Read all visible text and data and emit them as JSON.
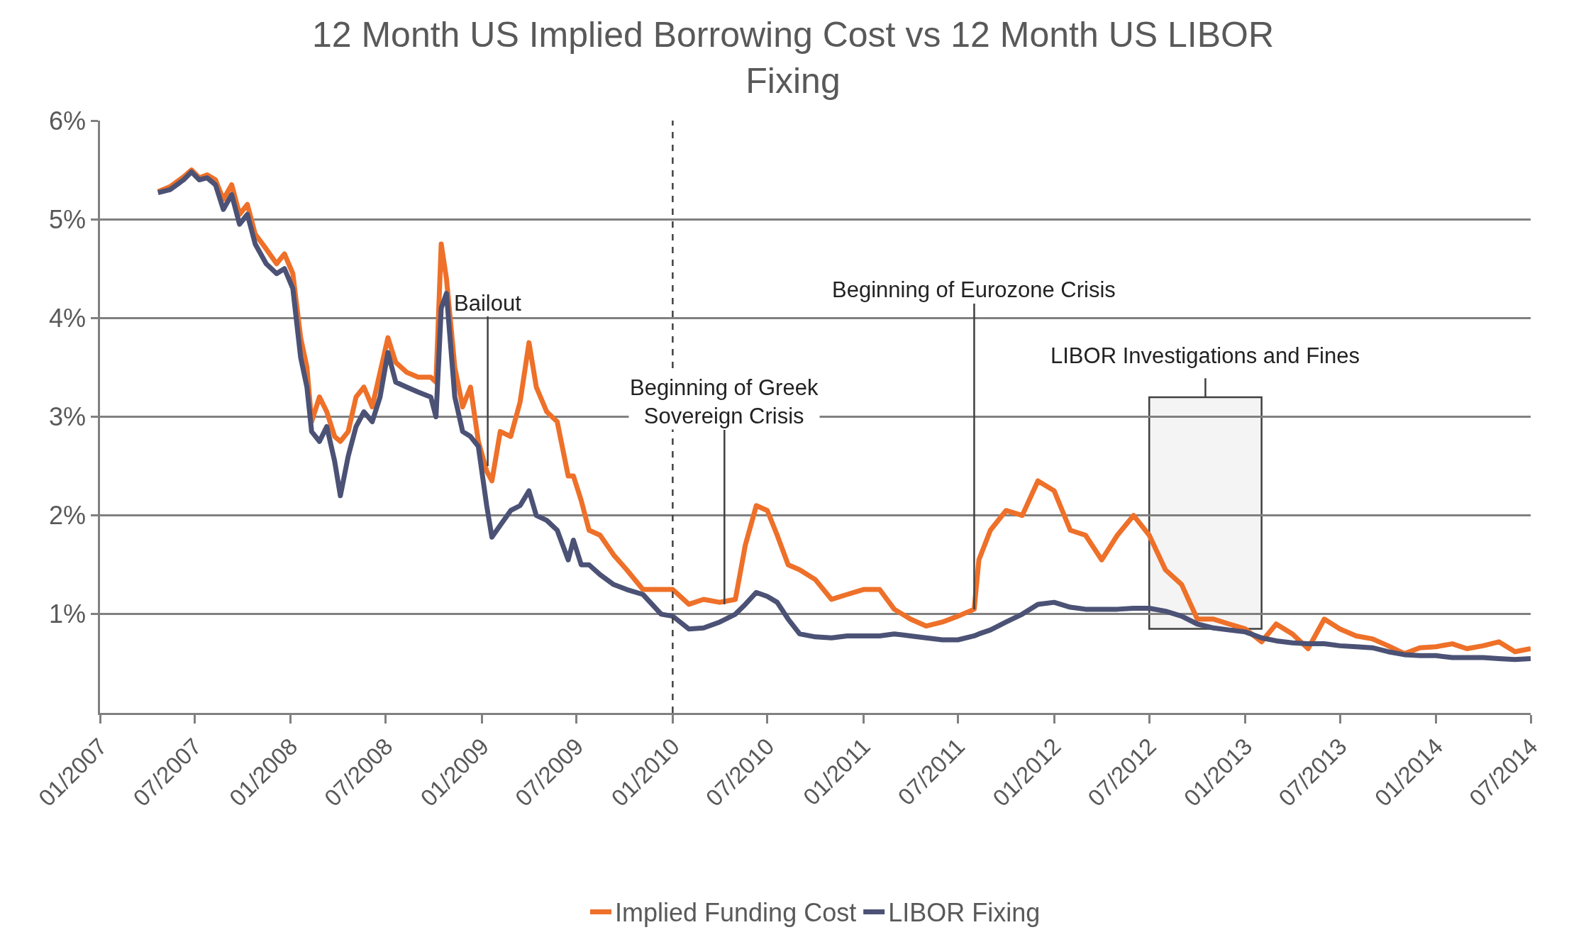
{
  "chart_data": {
    "type": "line",
    "title": "12 Month US Implied Borrowing Cost vs 12 Month US LIBOR Fixing",
    "x": [
      "2007-04-22",
      "2007-05-15",
      "2007-06-10",
      "2007-06-25",
      "2007-07-10",
      "2007-07-25",
      "2007-08-10",
      "2007-08-25",
      "2007-09-10",
      "2007-09-25",
      "2007-10-10",
      "2007-10-25",
      "2007-11-15",
      "2007-12-05",
      "2007-12-20",
      "2008-01-05",
      "2008-01-20",
      "2008-02-01",
      "2008-02-10",
      "2008-02-25",
      "2008-03-10",
      "2008-03-25",
      "2008-04-05",
      "2008-04-20",
      "2008-05-05",
      "2008-05-20",
      "2008-06-05",
      "2008-06-20",
      "2008-07-05",
      "2008-07-20",
      "2008-08-10",
      "2008-09-01",
      "2008-09-25",
      "2008-10-05",
      "2008-10-15",
      "2008-10-25",
      "2008-11-10",
      "2008-11-25",
      "2008-12-10",
      "2008-12-25",
      "2009-01-10",
      "2009-01-20",
      "2009-02-05",
      "2009-02-25",
      "2009-03-15",
      "2009-04-01",
      "2009-04-15",
      "2009-05-05",
      "2009-05-25",
      "2009-06-15",
      "2009-06-25",
      "2009-07-10",
      "2009-07-25",
      "2009-08-15",
      "2009-09-10",
      "2009-10-05",
      "2009-11-05",
      "2009-12-10",
      "2010-01-01",
      "2010-02-01",
      "2010-03-01",
      "2010-04-01",
      "2010-05-01",
      "2010-05-20",
      "2010-06-10",
      "2010-07-01",
      "2010-07-20",
      "2010-08-10",
      "2010-09-01",
      "2010-10-01",
      "2010-11-01",
      "2010-12-01",
      "2011-01-01",
      "2011-02-01",
      "2011-03-01",
      "2011-04-01",
      "2011-05-01",
      "2011-06-01",
      "2011-07-01",
      "2011-08-01",
      "2011-08-10",
      "2011-09-01",
      "2011-10-01",
      "2011-11-01",
      "2011-12-01",
      "2012-01-01",
      "2012-02-01",
      "2012-03-01",
      "2012-04-01",
      "2012-05-01",
      "2012-06-01",
      "2012-07-01",
      "2012-08-01",
      "2012-09-01",
      "2012-10-01",
      "2012-11-01",
      "2012-12-01",
      "2013-01-01",
      "2013-02-01",
      "2013-03-01",
      "2013-04-01",
      "2013-05-01",
      "2013-06-01",
      "2013-07-01",
      "2013-08-01",
      "2013-09-01",
      "2013-10-01",
      "2013-11-01",
      "2013-12-01",
      "2014-01-01",
      "2014-02-01",
      "2014-03-01",
      "2014-04-01",
      "2014-05-01",
      "2014-06-01",
      "2014-07-01"
    ],
    "series": [
      {
        "name": "Implied Funding Cost",
        "color": "#ee7029",
        "values": [
          5.28,
          5.33,
          5.43,
          5.5,
          5.42,
          5.45,
          5.4,
          5.2,
          5.35,
          5.05,
          5.15,
          4.85,
          4.7,
          4.55,
          4.65,
          4.45,
          3.8,
          3.5,
          2.95,
          3.2,
          3.05,
          2.8,
          2.75,
          2.85,
          3.2,
          3.3,
          3.1,
          3.45,
          3.8,
          3.55,
          3.45,
          3.4,
          3.4,
          3.35,
          4.75,
          4.4,
          3.5,
          3.1,
          3.3,
          2.75,
          2.45,
          2.35,
          2.85,
          2.8,
          3.15,
          3.75,
          3.3,
          3.05,
          2.95,
          2.4,
          2.4,
          2.15,
          1.85,
          1.8,
          1.6,
          1.45,
          1.25,
          1.25,
          1.25,
          1.1,
          1.15,
          1.12,
          1.15,
          1.7,
          2.1,
          2.05,
          1.8,
          1.5,
          1.45,
          1.35,
          1.15,
          1.2,
          1.25,
          1.25,
          1.05,
          0.95,
          0.88,
          0.92,
          0.98,
          1.05,
          1.55,
          1.85,
          2.05,
          2.0,
          2.35,
          2.25,
          1.85,
          1.8,
          1.55,
          1.8,
          2.0,
          1.8,
          1.45,
          1.3,
          0.95,
          0.95,
          0.9,
          0.85,
          0.72,
          0.9,
          0.8,
          0.65,
          0.95,
          0.85,
          0.78,
          0.75,
          0.68,
          0.6,
          0.66,
          0.67,
          0.7,
          0.65,
          0.68,
          0.72,
          0.62,
          0.65
        ]
      },
      {
        "name": "LIBOR Fixing",
        "color": "#4b5275",
        "values": [
          5.27,
          5.3,
          5.4,
          5.48,
          5.4,
          5.42,
          5.35,
          5.1,
          5.25,
          4.95,
          5.05,
          4.75,
          4.55,
          4.45,
          4.5,
          4.3,
          3.6,
          3.3,
          2.85,
          2.75,
          2.9,
          2.55,
          2.2,
          2.6,
          2.9,
          3.05,
          2.95,
          3.2,
          3.65,
          3.35,
          3.3,
          3.25,
          3.2,
          3.0,
          4.1,
          4.25,
          3.2,
          2.85,
          2.8,
          2.7,
          2.1,
          1.78,
          1.9,
          2.05,
          2.1,
          2.25,
          2.0,
          1.95,
          1.85,
          1.55,
          1.75,
          1.5,
          1.5,
          1.4,
          1.3,
          1.25,
          1.2,
          1.0,
          0.98,
          0.85,
          0.86,
          0.92,
          1.0,
          1.1,
          1.22,
          1.18,
          1.12,
          0.95,
          0.8,
          0.77,
          0.76,
          0.78,
          0.78,
          0.78,
          0.8,
          0.78,
          0.76,
          0.74,
          0.74,
          0.78,
          0.8,
          0.84,
          0.92,
          1.0,
          1.1,
          1.12,
          1.07,
          1.05,
          1.05,
          1.05,
          1.06,
          1.06,
          1.03,
          0.98,
          0.9,
          0.86,
          0.84,
          0.82,
          0.76,
          0.73,
          0.71,
          0.7,
          0.7,
          0.68,
          0.67,
          0.66,
          0.62,
          0.59,
          0.58,
          0.58,
          0.56,
          0.56,
          0.56,
          0.55,
          0.54,
          0.55
        ]
      }
    ],
    "xlim": [
      "2007-01-01",
      "2014-07-01"
    ],
    "xticks": [
      {
        "value": "2007-01-01",
        "label": "01/2007"
      },
      {
        "value": "2007-07-01",
        "label": "07/2007"
      },
      {
        "value": "2008-01-01",
        "label": "01/2008"
      },
      {
        "value": "2008-07-01",
        "label": "07/2008"
      },
      {
        "value": "2009-01-01",
        "label": "01/2009"
      },
      {
        "value": "2009-07-01",
        "label": "07/2009"
      },
      {
        "value": "2010-01-01",
        "label": "01/2010"
      },
      {
        "value": "2010-07-01",
        "label": "07/2010"
      },
      {
        "value": "2011-01-01",
        "label": "01/2011"
      },
      {
        "value": "2011-07-01",
        "label": "07/2011"
      },
      {
        "value": "2012-01-01",
        "label": "01/2012"
      },
      {
        "value": "2012-07-01",
        "label": "07/2012"
      },
      {
        "value": "2013-01-01",
        "label": "01/2013"
      },
      {
        "value": "2013-07-01",
        "label": "07/2013"
      },
      {
        "value": "2014-01-01",
        "label": "01/2014"
      },
      {
        "value": "2014-07-01",
        "label": "07/2014"
      }
    ],
    "ylim": [
      0,
      6
    ],
    "yticks": [
      {
        "value": 1,
        "label": "1%"
      },
      {
        "value": 2,
        "label": "2%"
      },
      {
        "value": 3,
        "label": "3%"
      },
      {
        "value": 4,
        "label": "4%"
      },
      {
        "value": 5,
        "label": "5%"
      },
      {
        "value": 6,
        "label": "6%"
      }
    ],
    "grid": "y",
    "legend": "bottom",
    "line_style": "solid",
    "marker": "none",
    "ref_lines": [
      {
        "axis": "x",
        "value": "2010-01-01",
        "label": null,
        "color": "#404040",
        "line_style": "dashed"
      }
    ],
    "bands": [
      {
        "axis": "x",
        "from": "2012-07-01",
        "to": "2013-02-01",
        "label": "LIBOR Investigations and Fines",
        "color": "#404040"
      }
    ],
    "annotations": [
      {
        "text": "Bailout",
        "x": "2009-01-12",
        "y": 2.5
      },
      {
        "text": "Beginning of Greek Sovereign Crisis",
        "x": "2010-04-10",
        "y": 1.1
      },
      {
        "text": "Beginning of Eurozone Crisis",
        "x": "2011-08-01",
        "y": 1.05
      }
    ]
  }
}
